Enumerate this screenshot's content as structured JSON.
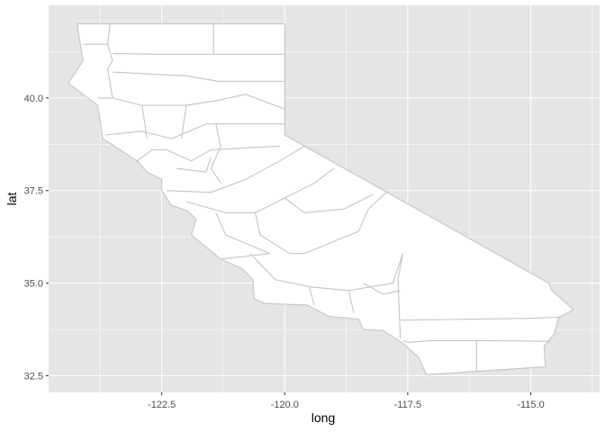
{
  "chart_data": {
    "type": "map",
    "xlabel": "long",
    "ylabel": "lat",
    "x_ticks": [
      -122.5,
      -120.0,
      -117.5,
      -115.0
    ],
    "x_tick_labels": [
      "-122.5",
      "-120.0",
      "-117.5",
      "-115.0"
    ],
    "y_ticks": [
      32.5,
      35.0,
      37.5,
      40.0
    ],
    "y_tick_labels": [
      "32.5",
      "35.0",
      "37.5",
      "40.0"
    ],
    "xlim": [
      -124.8,
      -113.6
    ],
    "ylim": [
      32.05,
      42.5
    ],
    "grid": true,
    "panel_background": "#e5e5e5",
    "grid_major_color": "#ffffff",
    "region_fill": "#ffffff",
    "region_stroke": "#c4c4c4",
    "outline": [
      [
        -124.21,
        42.0
      ],
      [
        -120.0,
        42.0
      ],
      [
        -120.0,
        39.0
      ],
      [
        -114.63,
        35.0
      ],
      [
        -114.57,
        34.8
      ],
      [
        -114.13,
        34.28
      ],
      [
        -114.43,
        34.08
      ],
      [
        -114.52,
        33.63
      ],
      [
        -114.73,
        33.3
      ],
      [
        -114.7,
        32.74
      ],
      [
        -117.12,
        32.53
      ],
      [
        -117.28,
        33.0
      ],
      [
        -117.6,
        33.38
      ],
      [
        -118.0,
        33.72
      ],
      [
        -118.4,
        33.75
      ],
      [
        -118.5,
        34.03
      ],
      [
        -119.1,
        34.1
      ],
      [
        -119.55,
        34.41
      ],
      [
        -120.4,
        34.45
      ],
      [
        -120.62,
        34.58
      ],
      [
        -120.65,
        35.1
      ],
      [
        -120.87,
        35.4
      ],
      [
        -121.3,
        35.65
      ],
      [
        -121.9,
        36.3
      ],
      [
        -121.8,
        36.72
      ],
      [
        -121.97,
        36.95
      ],
      [
        -122.3,
        37.1
      ],
      [
        -122.5,
        37.5
      ],
      [
        -122.5,
        37.8
      ],
      [
        -122.8,
        38.0
      ],
      [
        -123.0,
        38.3
      ],
      [
        -123.7,
        38.9
      ],
      [
        -123.8,
        39.8
      ],
      [
        -124.1,
        40.1
      ],
      [
        -124.4,
        40.4
      ],
      [
        -124.1,
        41.0
      ],
      [
        -124.2,
        41.8
      ],
      [
        -124.21,
        42.0
      ]
    ],
    "interior_boundaries": [
      [
        [
          -124.1,
          41.45
        ],
        [
          -123.6,
          41.45
        ],
        [
          -123.55,
          42.0
        ]
      ],
      [
        [
          -123.6,
          41.45
        ],
        [
          -123.5,
          41.0
        ],
        [
          -123.6,
          40.8
        ],
        [
          -123.5,
          40.0
        ],
        [
          -123.8,
          40.0
        ]
      ],
      [
        [
          -121.45,
          42.0
        ],
        [
          -121.45,
          41.18
        ],
        [
          -122.5,
          41.18
        ],
        [
          -123.5,
          41.2
        ]
      ],
      [
        [
          -121.45,
          41.18
        ],
        [
          -120.0,
          41.18
        ]
      ],
      [
        [
          -123.5,
          40.7
        ],
        [
          -122.0,
          40.6
        ],
        [
          -121.35,
          40.45
        ],
        [
          -120.0,
          40.45
        ]
      ],
      [
        [
          -123.5,
          40.0
        ],
        [
          -122.9,
          39.8
        ],
        [
          -122.0,
          39.8
        ],
        [
          -121.3,
          39.95
        ],
        [
          -120.8,
          40.1
        ],
        [
          -120.0,
          39.7
        ]
      ],
      [
        [
          -123.65,
          39.0
        ],
        [
          -122.9,
          39.1
        ],
        [
          -122.3,
          38.9
        ],
        [
          -121.6,
          39.3
        ],
        [
          -120.0,
          39.3
        ]
      ],
      [
        [
          -122.9,
          39.8
        ],
        [
          -122.8,
          38.9
        ]
      ],
      [
        [
          -122.0,
          39.8
        ],
        [
          -122.1,
          38.9
        ]
      ],
      [
        [
          -123.0,
          38.3
        ],
        [
          -122.7,
          38.6
        ],
        [
          -122.4,
          38.6
        ],
        [
          -121.9,
          38.3
        ],
        [
          -121.5,
          38.6
        ],
        [
          -120.1,
          38.7
        ]
      ],
      [
        [
          -122.2,
          38.1
        ],
        [
          -121.6,
          38.0
        ],
        [
          -121.5,
          38.4
        ]
      ],
      [
        [
          -121.4,
          39.3
        ],
        [
          -121.3,
          38.7
        ],
        [
          -121.5,
          38.1
        ],
        [
          -121.3,
          37.7
        ]
      ],
      [
        [
          -122.4,
          37.5
        ],
        [
          -121.5,
          37.45
        ],
        [
          -120.8,
          37.8
        ],
        [
          -120.1,
          38.3
        ],
        [
          -119.6,
          38.7
        ]
      ],
      [
        [
          -122.0,
          37.2
        ],
        [
          -121.2,
          36.9
        ],
        [
          -120.6,
          36.9
        ],
        [
          -120.0,
          37.3
        ],
        [
          -119.4,
          37.7
        ],
        [
          -119.0,
          38.1
        ]
      ],
      [
        [
          -121.4,
          36.9
        ],
        [
          -121.2,
          36.3
        ],
        [
          -120.3,
          35.8
        ]
      ],
      [
        [
          -120.6,
          36.9
        ],
        [
          -120.5,
          36.3
        ],
        [
          -119.9,
          35.8
        ],
        [
          -119.6,
          35.8
        ],
        [
          -118.5,
          36.4
        ],
        [
          -118.3,
          37.0
        ],
        [
          -117.9,
          37.5
        ]
      ],
      [
        [
          -120.0,
          37.3
        ],
        [
          -119.6,
          36.9
        ],
        [
          -118.8,
          37.0
        ],
        [
          -118.2,
          37.4
        ]
      ],
      [
        [
          -120.7,
          35.8
        ],
        [
          -120.2,
          35.1
        ],
        [
          -119.5,
          34.9
        ],
        [
          -118.7,
          34.8
        ],
        [
          -117.8,
          35.0
        ],
        [
          -117.6,
          35.8
        ]
      ],
      [
        [
          -119.5,
          34.9
        ],
        [
          -119.4,
          34.4
        ]
      ],
      [
        [
          -118.7,
          34.8
        ],
        [
          -118.6,
          34.2
        ]
      ],
      [
        [
          -117.6,
          35.8
        ],
        [
          -117.7,
          35.1
        ],
        [
          -117.65,
          33.5
        ]
      ],
      [
        [
          -117.65,
          34.0
        ],
        [
          -115.0,
          34.05
        ],
        [
          -114.43,
          34.08
        ]
      ],
      [
        [
          -117.6,
          33.45
        ],
        [
          -117.5,
          33.4
        ],
        [
          -117.0,
          33.45
        ],
        [
          -116.1,
          33.45
        ],
        [
          -114.6,
          33.43
        ]
      ],
      [
        [
          -116.1,
          33.45
        ],
        [
          -116.1,
          32.62
        ]
      ],
      [
        [
          -118.4,
          35.0
        ],
        [
          -118.0,
          34.7
        ],
        [
          -117.65,
          34.8
        ]
      ],
      [
        [
          -121.3,
          35.65
        ],
        [
          -120.3,
          35.8
        ]
      ]
    ]
  }
}
